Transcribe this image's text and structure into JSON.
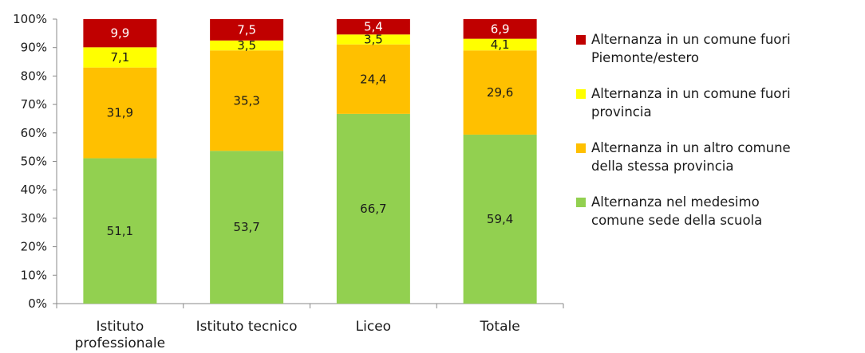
{
  "chart_data": {
    "type": "bar",
    "stacked": true,
    "categories": [
      "Istituto professionale",
      "Istituto tecnico",
      "Liceo",
      "Totale"
    ],
    "category_label_lines": [
      [
        "Istituto",
        "professionale"
      ],
      [
        "Istituto tecnico"
      ],
      [
        "Liceo"
      ],
      [
        "Totale"
      ]
    ],
    "series": [
      {
        "name": "Alternanza nel medesimo comune sede della scuola",
        "values": [
          51.1,
          53.7,
          66.7,
          59.4
        ],
        "labels": [
          "51,1",
          "53,7",
          "66,7",
          "59,4"
        ],
        "color": "#92d050",
        "label_color": "#1a1a1a"
      },
      {
        "name": "Alternanza in un altro comune della stessa provincia",
        "values": [
          31.9,
          35.3,
          24.4,
          29.6
        ],
        "labels": [
          "31,9",
          "35,3",
          "24,4",
          "29,6"
        ],
        "color": "#ffc000",
        "label_color": "#1a1a1a"
      },
      {
        "name": "Alternanza in un comune fuori provincia",
        "values": [
          7.1,
          3.5,
          3.5,
          4.1
        ],
        "labels": [
          "7,1",
          "3,5",
          "3,5",
          "4,1"
        ],
        "color": "#ffff00",
        "label_color": "#1a1a1a"
      },
      {
        "name": "Alternanza in un comune fuori Piemonte/estero",
        "values": [
          9.9,
          7.5,
          5.4,
          6.9
        ],
        "labels": [
          "9,9",
          "7,5",
          "5,4",
          "6,9"
        ],
        "color": "#c00000",
        "label_color": "#ffffff"
      }
    ],
    "ylim": [
      0,
      100
    ],
    "yticks": [
      "0%",
      "10%",
      "20%",
      "30%",
      "40%",
      "50%",
      "60%",
      "70%",
      "80%",
      "90%",
      "100%"
    ],
    "legend_position": "right",
    "grid": false
  },
  "legend": {
    "items": [
      {
        "label_lines": [
          "Alternanza in un comune fuori",
          "Piemonte/estero"
        ],
        "color": "#c00000"
      },
      {
        "label_lines": [
          "Alternanza in un comune fuori",
          "provincia"
        ],
        "color": "#ffff00"
      },
      {
        "label_lines": [
          "Alternanza in un altro comune",
          "della stessa provincia"
        ],
        "color": "#ffc000"
      },
      {
        "label_lines": [
          "Alternanza nel medesimo",
          "comune sede della scuola"
        ],
        "color": "#92d050"
      }
    ]
  }
}
